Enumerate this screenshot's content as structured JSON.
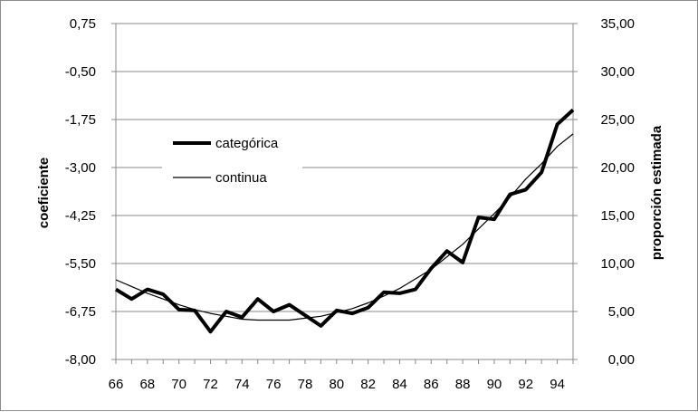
{
  "chart_data": {
    "type": "line",
    "xlabel": "",
    "y_left_label": "coeficiente",
    "y_right_label": "proporción estimada",
    "x_ticks": [
      "66",
      "68",
      "70",
      "72",
      "74",
      "76",
      "78",
      "80",
      "82",
      "84",
      "86",
      "88",
      "90",
      "92",
      "94"
    ],
    "y_left_ticks": [
      "0,75",
      "-0,50",
      "-1,75",
      "-3,00",
      "-4,25",
      "-5,50",
      "-6,75",
      "-8,00"
    ],
    "y_right_ticks": [
      "35,00",
      "30,00",
      "25,00",
      "20,00",
      "15,00",
      "10,00",
      "5,00",
      "0,00"
    ],
    "y_left_range": [
      -8.0,
      0.75
    ],
    "y_right_range": [
      0,
      35
    ],
    "x_range": [
      66,
      95
    ],
    "grid": "horizontal",
    "legend_position": "upper-left",
    "series": [
      {
        "name": "categórica",
        "axis": "right",
        "style": "thick",
        "x": [
          66,
          67,
          68,
          69,
          70,
          71,
          72,
          73,
          74,
          75,
          76,
          77,
          78,
          79,
          80,
          81,
          82,
          83,
          84,
          85,
          86,
          87,
          88,
          89,
          90,
          91,
          92,
          93,
          94,
          95
        ],
        "values": [
          7.3,
          6.3,
          7.3,
          6.8,
          5.2,
          5.1,
          2.9,
          5.0,
          4.4,
          6.3,
          5.0,
          5.7,
          4.6,
          3.5,
          5.1,
          4.8,
          5.4,
          7.0,
          6.9,
          7.3,
          9.5,
          11.3,
          10.1,
          14.8,
          14.6,
          17.2,
          17.7,
          19.5,
          24.5,
          26.0
        ]
      },
      {
        "name": "continua",
        "axis": "right",
        "style": "thin",
        "x": [
          66,
          67,
          68,
          69,
          70,
          71,
          72,
          73,
          74,
          75,
          76,
          77,
          78,
          79,
          80,
          81,
          82,
          83,
          84,
          85,
          86,
          87,
          88,
          89,
          90,
          91,
          92,
          93,
          94,
          95
        ],
        "values": [
          8.3,
          7.6,
          6.9,
          6.3,
          5.7,
          5.2,
          4.8,
          4.5,
          4.2,
          4.1,
          4.1,
          4.1,
          4.3,
          4.5,
          4.9,
          5.3,
          5.9,
          6.6,
          7.4,
          8.4,
          9.4,
          10.7,
          12.0,
          13.6,
          15.2,
          16.9,
          18.8,
          20.4,
          22.2,
          23.5
        ]
      }
    ]
  }
}
